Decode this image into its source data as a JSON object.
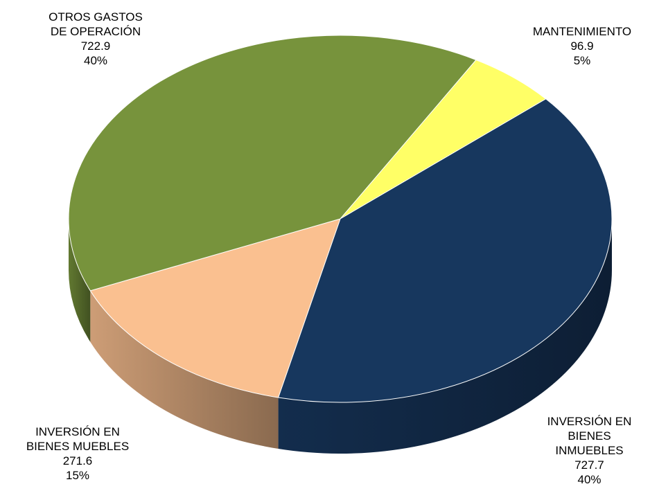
{
  "chart_data": {
    "type": "pie",
    "style": "3d",
    "slices": [
      {
        "label": [
          "MANTENIMIENTO"
        ],
        "value": 96.9,
        "percent": "5%",
        "color": "#ffff66"
      },
      {
        "label": [
          "INVERSIÓN EN",
          "BIENES",
          "INMUEBLES"
        ],
        "value": 727.7,
        "percent": "40%",
        "color": "#17375e"
      },
      {
        "label": [
          "INVERSIÓN EN",
          "BIENES MUEBLES"
        ],
        "value": 271.6,
        "percent": "15%",
        "color": "#fac090"
      },
      {
        "label": [
          "OTROS GASTOS",
          "DE OPERACIÓN"
        ],
        "value": 722.9,
        "percent": "40%",
        "color": "#77933c"
      }
    ],
    "value_labels": [
      "96.9",
      "727.7",
      "271.6",
      "722.9"
    ]
  }
}
